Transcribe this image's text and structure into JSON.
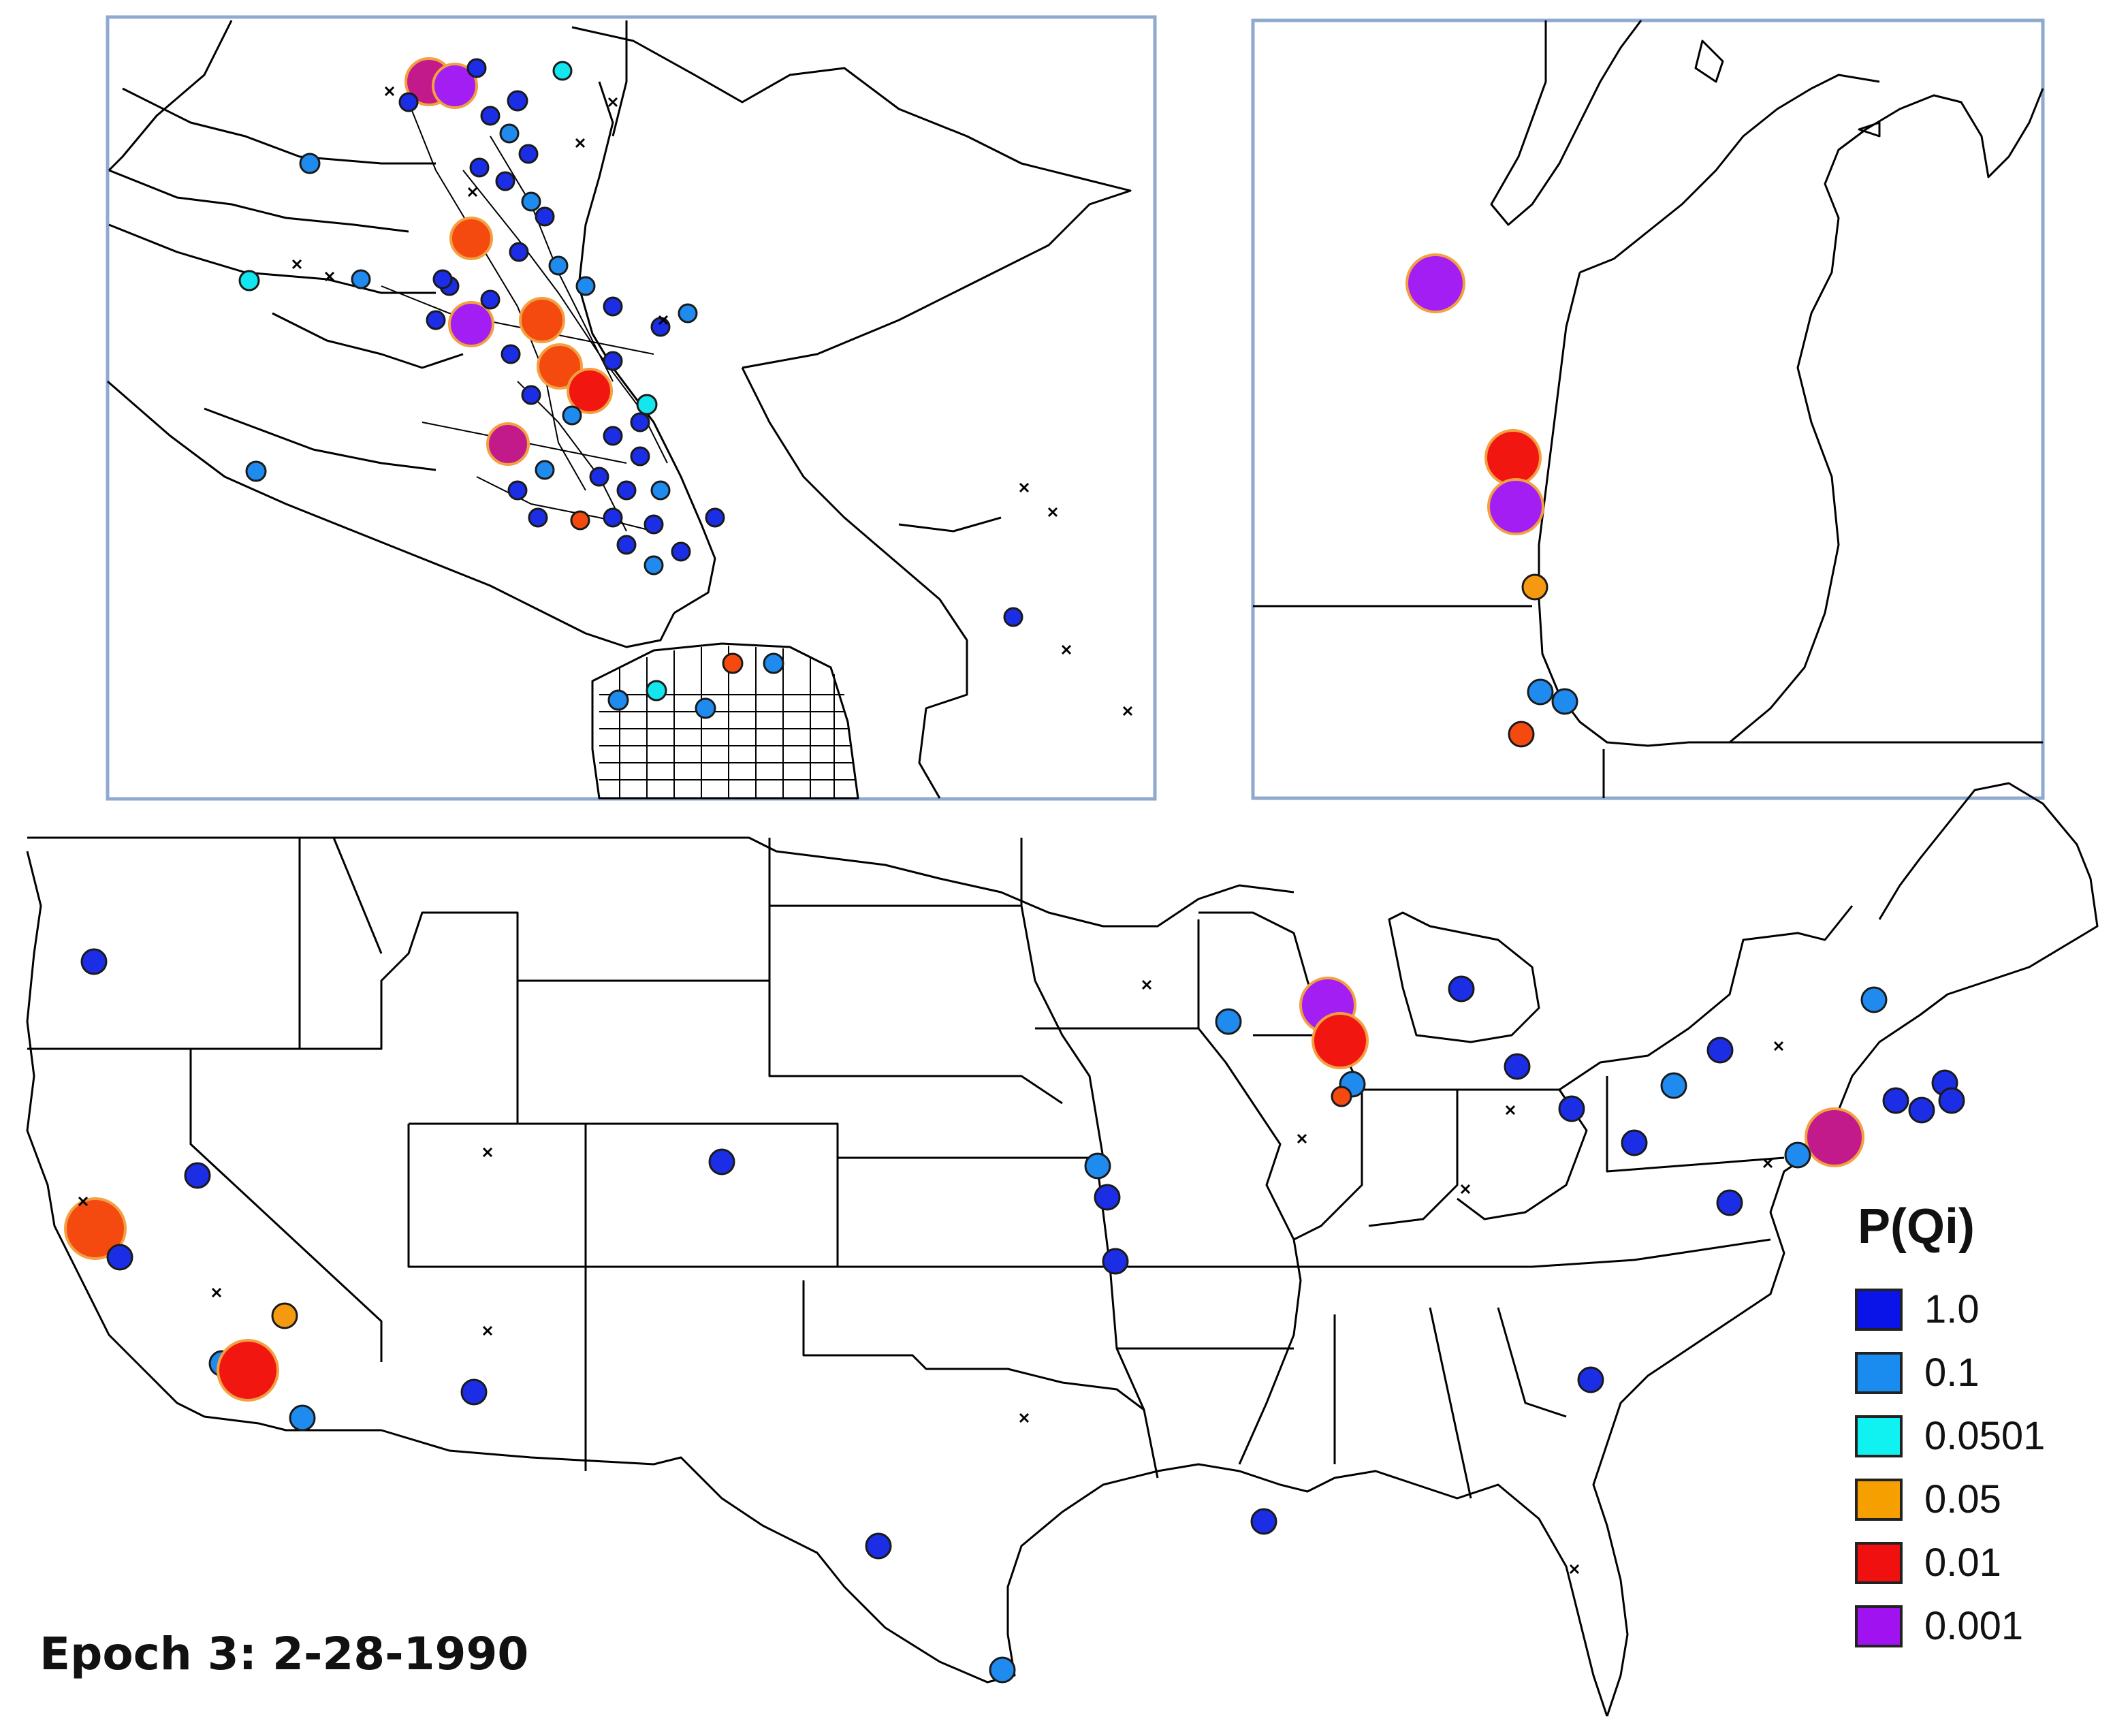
{
  "epoch_label": "Epoch 3: 2-28-1990",
  "legend": {
    "title": "P(Qi)",
    "items": [
      {
        "label": "1.0",
        "color": "#0a14e8"
      },
      {
        "label": "0.1",
        "color": "#1a8cf0"
      },
      {
        "label": "0.0501",
        "color": "#10f2f2"
      },
      {
        "label": "0.05",
        "color": "#f5a000"
      },
      {
        "label": "0.01",
        "color": "#f01010"
      },
      {
        "label": "0.001",
        "color": "#a012f0"
      }
    ]
  },
  "marker_styles": {
    "blue": "#1b2ee6",
    "lightblue": "#1f8bef",
    "cyan": "#14e6f0",
    "orange": "#f59a10",
    "redorange": "#f44a10",
    "red": "#f21610",
    "purple": "#a21ef2",
    "magenta": "#c21a8a"
  },
  "map_panels": [
    {
      "name": "bay-area-inset"
    },
    {
      "name": "lake-michigan-inset"
    },
    {
      "name": "contiguous-us-map"
    }
  ]
}
